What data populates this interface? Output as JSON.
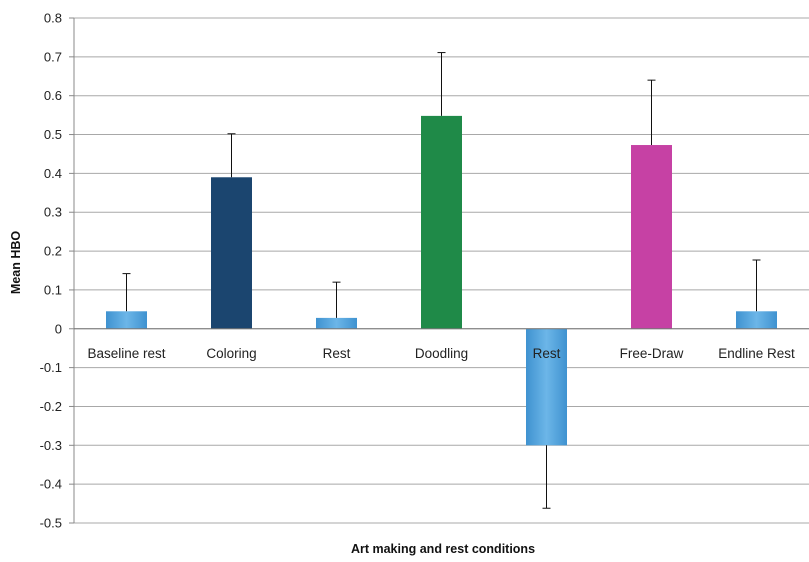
{
  "chart_data": {
    "type": "bar",
    "title": "",
    "xlabel": "Art making and rest conditions",
    "ylabel": "Mean HBO",
    "ylim": [
      -0.5,
      0.8
    ],
    "yticks": [
      0.8,
      0.7,
      0.6,
      0.5,
      0.4,
      0.3,
      0.2,
      0.1,
      0,
      -0.1,
      -0.2,
      -0.3,
      -0.4,
      -0.5
    ],
    "ytick_labels": [
      "0.8",
      "0.7",
      "0.6",
      "0.5",
      "0.4",
      "0.3",
      "0.2",
      "0.1",
      "0",
      "-0.1",
      "-0.2",
      "-0.3",
      "-0.4",
      "-0.5"
    ],
    "grid": true,
    "legend": "none",
    "categories": [
      "Baseline rest",
      "Coloring",
      "Rest",
      "Doodling",
      "Rest",
      "Free-Draw",
      "Endline Rest"
    ],
    "values": [
      0.045,
      0.39,
      0.028,
      0.548,
      -0.3,
      0.473,
      0.045
    ],
    "error_plus": [
      0.097,
      0.112,
      0.092,
      0.163,
      0.162,
      0.167,
      0.132
    ],
    "colors": [
      "#5aa5dc",
      "#1b456f",
      "#5aa5dc",
      "#1f8a48",
      "#5aa5dc",
      "#c641a4",
      "#5aa5dc"
    ]
  }
}
